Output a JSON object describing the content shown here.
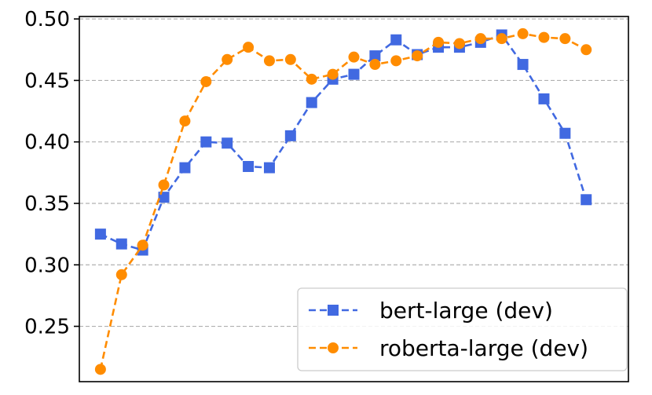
{
  "chart_data": {
    "type": "line",
    "title": "",
    "xlabel": "",
    "ylabel": "",
    "x": [
      1,
      2,
      3,
      4,
      5,
      6,
      7,
      8,
      9,
      10,
      11,
      12,
      13,
      14,
      15,
      16,
      17,
      18,
      19,
      20,
      21,
      22,
      23,
      24,
      25
    ],
    "xlim": [
      0,
      26
    ],
    "ylim": [
      0.205,
      0.502
    ],
    "yticks": [
      "0.25",
      "0.30",
      "0.35",
      "0.40",
      "0.45",
      "0.50"
    ],
    "grid": "horizontal dashed",
    "legend_position": "lower-right",
    "series": [
      {
        "name": "bert-large (dev)",
        "color": "#4169e1",
        "marker": "square",
        "linestyle": "dashed",
        "values": [
          0.325,
          0.317,
          0.312,
          0.355,
          0.379,
          0.4,
          0.399,
          0.38,
          0.379,
          0.405,
          0.432,
          0.451,
          0.455,
          0.47,
          0.483,
          0.471,
          0.477,
          0.477,
          0.481,
          0.487,
          0.463,
          0.435,
          0.407,
          0.353,
          null
        ]
      },
      {
        "name": "roberta-large (dev)",
        "color": "#ff8c00",
        "marker": "circle",
        "linestyle": "dashed",
        "values": [
          0.215,
          0.292,
          0.316,
          0.365,
          0.417,
          0.449,
          0.467,
          0.477,
          0.466,
          0.467,
          0.451,
          0.455,
          0.469,
          0.463,
          0.466,
          0.47,
          0.481,
          0.48,
          0.484,
          0.484,
          0.488,
          0.485,
          0.484,
          0.475,
          null
        ]
      }
    ]
  }
}
